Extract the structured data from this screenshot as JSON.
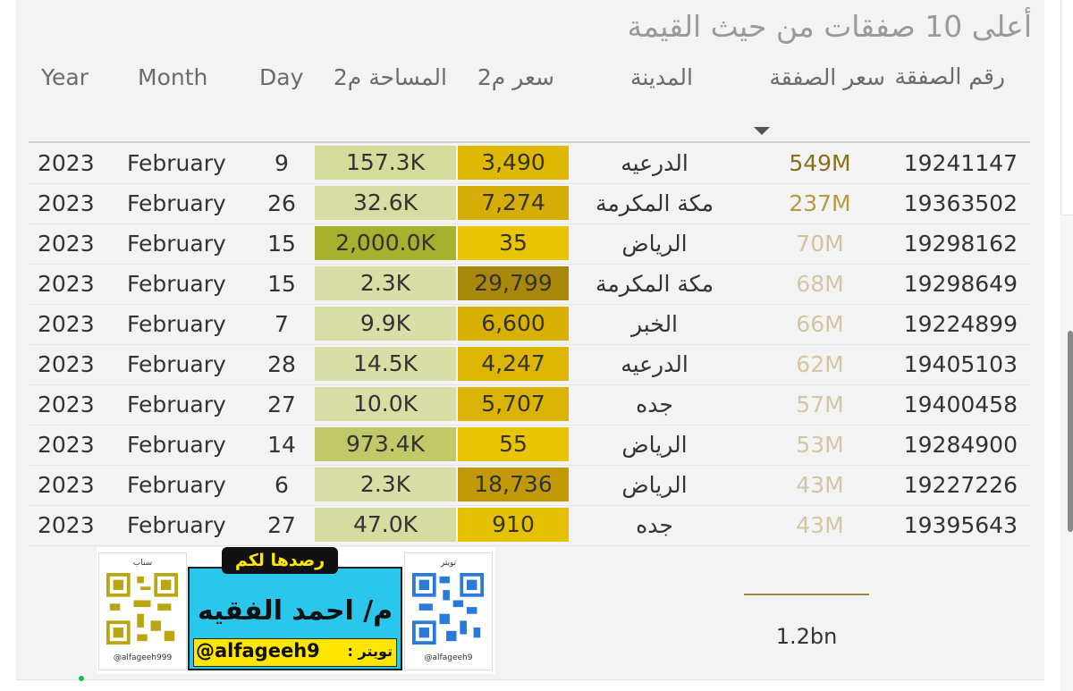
{
  "title": "أعلى 10 صفقات من حيث القيمة",
  "columns": {
    "year": "Year",
    "month": "Month",
    "day": "Day",
    "area": "المساحة م2",
    "price_m2": "سعر م2",
    "city": "المدينة",
    "deal_price": "سعر الصفقة",
    "deal_id": "رقم الصفقة"
  },
  "rows": [
    {
      "year": "2023",
      "month": "February",
      "day": "9",
      "area": "157.3K",
      "price_m2": "3,490",
      "city": "الدرعيه",
      "deal_price": "549M",
      "deal_id": "19241147",
      "area_bg": "#d5dc9b",
      "price_bg": "#dfb802",
      "deal_color": "#8a6f1c"
    },
    {
      "year": "2023",
      "month": "February",
      "day": "26",
      "area": "32.6K",
      "price_m2": "7,274",
      "city": "مكة المكرمة",
      "deal_price": "237M",
      "deal_id": "19363502",
      "area_bg": "#d6dca2",
      "price_bg": "#d6ae08",
      "deal_color": "#b89a45"
    },
    {
      "year": "2023",
      "month": "February",
      "day": "15",
      "area": "2,000.0K",
      "price_m2": "35",
      "city": "الرياض",
      "deal_price": "70M",
      "deal_id": "19298162",
      "area_bg": "#a6b22d",
      "price_bg": "#e8c402",
      "deal_color": "#cfc3a0"
    },
    {
      "year": "2023",
      "month": "February",
      "day": "15",
      "area": "2.3K",
      "price_m2": "29,799",
      "city": "مكة المكرمة",
      "deal_price": "68M",
      "deal_id": "19298649",
      "area_bg": "#d8dea6",
      "price_bg": "#a8870a",
      "deal_color": "#d2c6a4"
    },
    {
      "year": "2023",
      "month": "February",
      "day": "7",
      "area": "9.9K",
      "price_m2": "6,600",
      "city": "الخبر",
      "deal_price": "66M",
      "deal_id": "19224899",
      "area_bg": "#d8dea6",
      "price_bg": "#d9b004",
      "deal_color": "#d2c6a4"
    },
    {
      "year": "2023",
      "month": "February",
      "day": "28",
      "area": "14.5K",
      "price_m2": "4,247",
      "city": "الدرعيه",
      "deal_price": "62M",
      "deal_id": "19405103",
      "area_bg": "#d8dea5",
      "price_bg": "#ddb603",
      "deal_color": "#d2c6a4"
    },
    {
      "year": "2023",
      "month": "February",
      "day": "27",
      "area": "10.0K",
      "price_m2": "5,707",
      "city": "جده",
      "deal_price": "57M",
      "deal_id": "19400458",
      "area_bg": "#d8dea6",
      "price_bg": "#dbb304",
      "deal_color": "#d2c6a4"
    },
    {
      "year": "2023",
      "month": "February",
      "day": "14",
      "area": "973.4K",
      "price_m2": "55",
      "city": "الرياض",
      "deal_price": "53M",
      "deal_id": "19284900",
      "area_bg": "#c0c867",
      "price_bg": "#e8c402",
      "deal_color": "#d2c6a4"
    },
    {
      "year": "2023",
      "month": "February",
      "day": "6",
      "area": "2.3K",
      "price_m2": "18,736",
      "city": "الرياض",
      "deal_price": "43M",
      "deal_id": "19227226",
      "area_bg": "#d8dea6",
      "price_bg": "#c29a08",
      "deal_color": "#d2c6a4"
    },
    {
      "year": "2023",
      "month": "February",
      "day": "27",
      "area": "47.0K",
      "price_m2": "910",
      "city": "جده",
      "deal_price": "43M",
      "deal_id": "19395643",
      "area_bg": "#d6dc9f",
      "price_bg": "#e6c102",
      "deal_color": "#d2c6a4"
    }
  ],
  "total": "1.2bn",
  "banner": {
    "left_caption": "سناب",
    "left_handle": "@alfageeh999",
    "right_caption": "تويتر",
    "right_handle": "@alfageeh9",
    "tagline": "رصدها لكم",
    "name": "م/ احمد الفقيه",
    "handle": "@alfageeh9",
    "handle_label": "تويتر :"
  }
}
